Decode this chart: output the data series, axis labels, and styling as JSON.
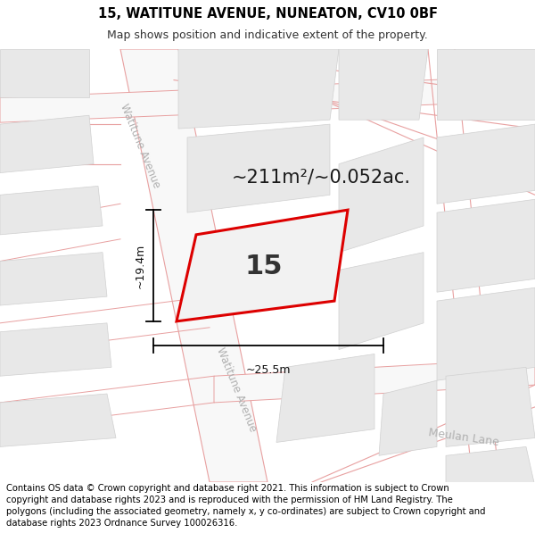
{
  "title": "15, WATITUNE AVENUE, NUNEATON, CV10 0BF",
  "subtitle": "Map shows position and indicative extent of the property.",
  "footer": "Contains OS data © Crown copyright and database right 2021. This information is subject to Crown copyright and database rights 2023 and is reproduced with the permission of HM Land Registry. The polygons (including the associated geometry, namely x, y co-ordinates) are subject to Crown copyright and database rights 2023 Ordnance Survey 100026316.",
  "area_label": "~211m²/~0.052ac.",
  "number_label": "15",
  "dim_height": "~19.4m",
  "dim_width": "~25.5m",
  "road_label_upper": "Watitune Avenue",
  "road_label_lower": "Watitune Avenue",
  "road_label_meulan": "Meulan Lane",
  "map_bg": "#ffffff",
  "road_fill": "#f5f5f5",
  "road_line": "#e8a0a0",
  "block_fill": "#e8e8e8",
  "block_edge": "#d0d0d0",
  "property_line": "#dd0000",
  "property_fill": "#f2f2f2",
  "title_fontsize": 10.5,
  "subtitle_fontsize": 9,
  "footer_fontsize": 7.2,
  "area_fontsize": 15,
  "number_fontsize": 22,
  "dim_fontsize": 9,
  "road_label_fontsize": 8.5,
  "meulan_fontsize": 9
}
